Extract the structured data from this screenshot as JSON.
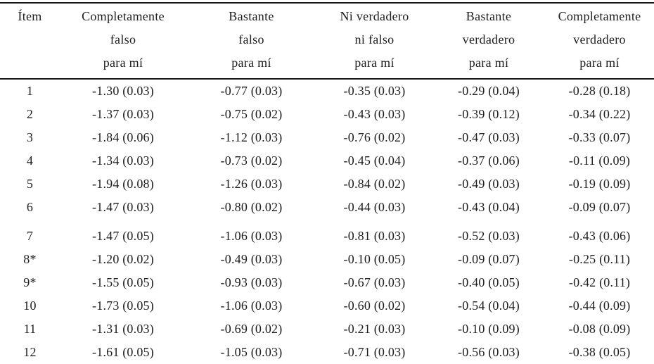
{
  "table": {
    "headers": [
      {
        "line1": "Ítem",
        "line2": "",
        "line3": ""
      },
      {
        "line1": "Completamente",
        "line2": "falso",
        "line3": "para mí"
      },
      {
        "line1": "Bastante",
        "line2": "falso",
        "line3": "para mí"
      },
      {
        "line1": "Ni verdadero",
        "line2": "ni falso",
        "line3": "para mí"
      },
      {
        "line1": "Bastante",
        "line2": "verdadero",
        "line3": "para mí"
      },
      {
        "line1": "Completamente",
        "line2": "verdadero",
        "line3": "para mí"
      }
    ],
    "rows": [
      {
        "item": "1",
        "values": [
          "-1.30 (0.03)",
          "-0.77 (0.03)",
          "-0.35 (0.03)",
          "-0.29 (0.04)",
          "-0.28 (0.18)"
        ]
      },
      {
        "item": "2",
        "values": [
          "-1.37 (0.03)",
          "-0.75 (0.02)",
          "-0.43 (0.03)",
          "-0.39 (0.12)",
          "-0.34 (0.22)"
        ]
      },
      {
        "item": "3",
        "values": [
          "-1.84 (0.06)",
          "-1.12 (0.03)",
          "-0.76 (0.02)",
          "-0.47 (0.03)",
          "-0.33 (0.07)"
        ]
      },
      {
        "item": "4",
        "values": [
          "-1.34 (0.03)",
          "-0.73 (0.02)",
          "-0.45 (0.04)",
          "-0.37 (0.06)",
          "-0.11 (0.09)"
        ]
      },
      {
        "item": "5",
        "values": [
          "-1.94 (0.08)",
          "-1.26 (0.03)",
          "-0.84 (0.02)",
          "-0.49 (0.03)",
          "-0.19 (0.09)"
        ]
      },
      {
        "item": "6",
        "values": [
          "-1.47 (0.03)",
          "-0.80 (0.02)",
          "-0.44 (0.03)",
          "-0.43 (0.04)",
          "-0.09 (0.07)"
        ]
      },
      {
        "item": "7",
        "values": [
          "-1.47 (0.05)",
          "-1.06 (0.03)",
          "-0.81 (0.03)",
          "-0.52 (0.03)",
          "-0.43 (0.06)"
        ]
      },
      {
        "item": "8*",
        "values": [
          "-1.20 (0.02)",
          "-0.49 (0.03)",
          "-0.10 (0.05)",
          "-0.09 (0.07)",
          "-0.25 (0.11)"
        ]
      },
      {
        "item": "9*",
        "values": [
          "-1.55 (0.05)",
          "-0.93 (0.03)",
          "-0.67 (0.03)",
          "-0.40 (0.05)",
          "-0.42 (0.11)"
        ]
      },
      {
        "item": "10",
        "values": [
          "-1.73 (0.05)",
          "-1.06 (0.03)",
          "-0.60 (0.02)",
          "-0.54 (0.04)",
          "-0.44 (0.09)"
        ]
      },
      {
        "item": "11",
        "values": [
          "-1.31 (0.03)",
          "-0.69 (0.02)",
          "-0.21 (0.03)",
          "-0.10 (0.09)",
          "-0.08 (0.09)"
        ]
      },
      {
        "item": "12",
        "values": [
          "-1.61 (0.05)",
          "-1.05 (0.03)",
          "-0.71 (0.03)",
          "-0.56 (0.03)",
          "-0.38 (0.05)"
        ]
      }
    ]
  },
  "colors": {
    "text": "#1e1e1e",
    "rule": "#161616",
    "background": "#ffffff"
  }
}
